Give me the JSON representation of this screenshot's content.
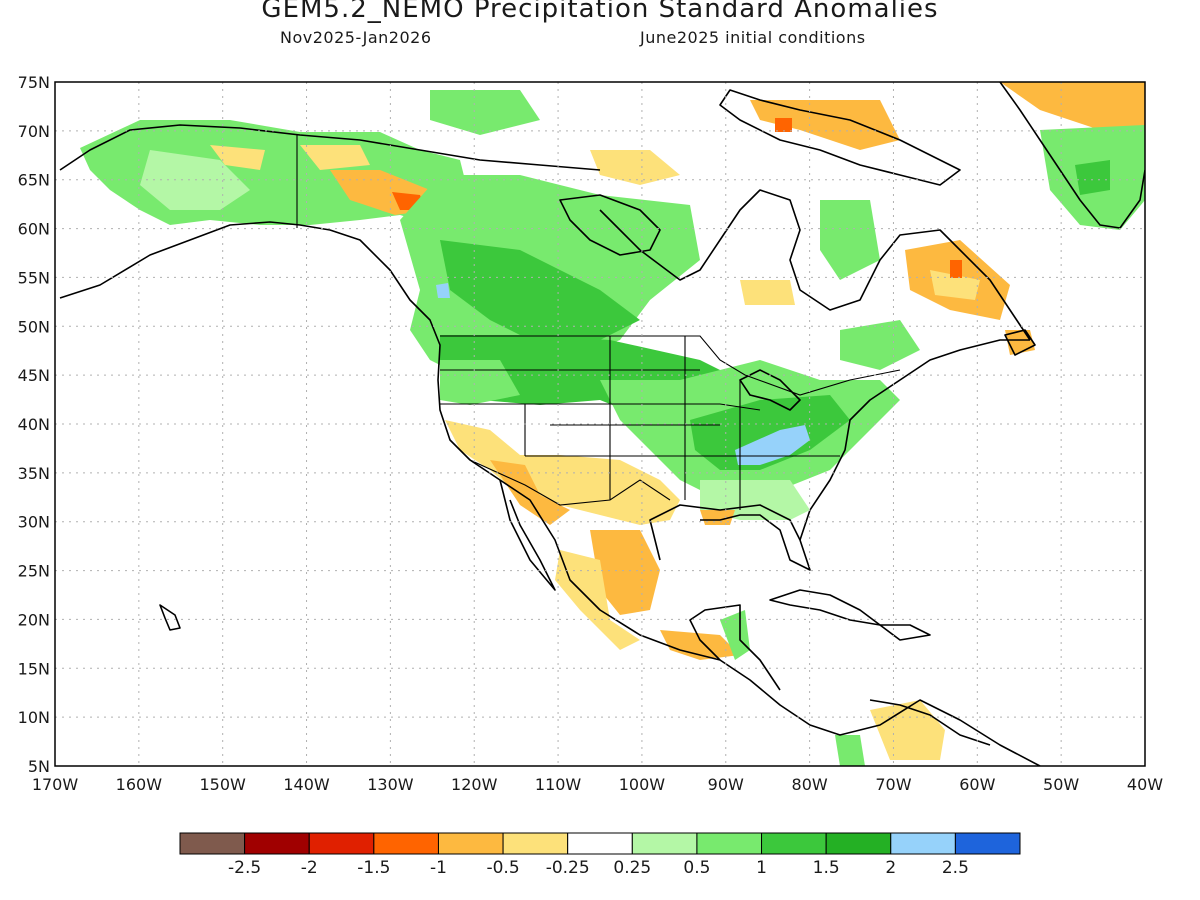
{
  "title": "GEM5.2_NEMO Precipitation Standard Anomalies",
  "subtitle_left": "Nov2025-Jan2026",
  "subtitle_right": "June2025 initial conditions",
  "map": {
    "lon_range": [
      -170,
      -40
    ],
    "lat_range": [
      5,
      75
    ],
    "lat_ticks": [
      "75N",
      "70N",
      "65N",
      "60N",
      "55N",
      "50N",
      "45N",
      "40N",
      "35N",
      "30N",
      "25N",
      "20N",
      "15N",
      "10N",
      "5N"
    ],
    "lon_ticks": [
      "170W",
      "160W",
      "150W",
      "140W",
      "130W",
      "120W",
      "110W",
      "100W",
      "90W",
      "80W",
      "70W",
      "60W",
      "50W",
      "40W"
    ]
  },
  "colorbar": {
    "colors": [
      "#7f5a4d",
      "#a00000",
      "#e02000",
      "#ff6400",
      "#fdb940",
      "#fde17a",
      "#ffffff",
      "#b4f7a6",
      "#78ea6e",
      "#3cc83c",
      "#24b024",
      "#96d2fa",
      "#1e64dc"
    ],
    "labels": [
      "-2.5",
      "-2",
      "-1.5",
      "-1",
      "-0.5",
      "-0.25",
      "0.25",
      "0.5",
      "1",
      "1.5",
      "2",
      "2.5"
    ]
  },
  "colors": {
    "grid": "#b0b0b0",
    "coast": "#000000"
  }
}
